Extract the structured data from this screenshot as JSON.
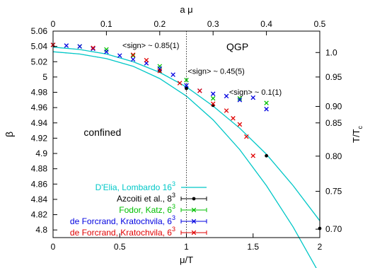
{
  "chart_data": {
    "type": "scatter",
    "xlabel": "μ/T",
    "ylabel": "β",
    "x2label": "a μ",
    "y2label_main": "T/T",
    "y2label_sub": "c",
    "xlim": [
      0,
      2
    ],
    "ylim": [
      4.79,
      5.06
    ],
    "x2lim": [
      0,
      0.5
    ],
    "y2_ticks": [
      {
        "label": "0.70",
        "beta": 4.801
      },
      {
        "label": "0.75",
        "beta": 4.8505
      },
      {
        "label": "0.80",
        "beta": 4.8965
      },
      {
        "label": "0.85",
        "beta": 4.94
      },
      {
        "label": "0.90",
        "beta": 4.9615
      },
      {
        "label": "0.95",
        "beta": 5.0
      },
      {
        "label": "1.0",
        "beta": 5.032
      }
    ],
    "x_ticks": [
      0,
      0.5,
      1,
      1.5,
      2
    ],
    "x_tick_labels": [
      "0",
      "0.5",
      "1",
      "1.5",
      "2"
    ],
    "y_ticks": [
      4.8,
      4.82,
      4.84,
      4.86,
      4.88,
      4.9,
      4.92,
      4.94,
      4.96,
      4.98,
      5,
      5.02,
      5.04,
      5.06
    ],
    "y_tick_labels": [
      "4.8",
      "4.82",
      "4.84",
      "4.86",
      "4.88",
      "4.9",
      "4.92",
      "4.94",
      "4.96",
      "4.98",
      "5",
      "5.02",
      "5.04",
      "5.06"
    ],
    "x2_ticks": [
      0,
      0.1,
      0.2,
      0.3,
      0.4,
      0.5
    ],
    "x2_tick_labels": [
      "0",
      "0.1",
      "0.2",
      "0.3",
      "0.4",
      "0.5"
    ],
    "vertical_line_x": 1.0,
    "annotations": [
      {
        "text": "QGP",
        "x": 1.3,
        "y": 5.035
      },
      {
        "text": "confined",
        "x": 0.23,
        "y": 4.923
      },
      {
        "text": "<sign> ~ 0.85(1)",
        "x": 0.52,
        "y": 5.038
      },
      {
        "text": "<sign> ~ 0.45(5)",
        "x": 1.01,
        "y": 5.004
      },
      {
        "text": "<sign> ~ 0.1(1)",
        "x": 1.32,
        "y": 4.977
      }
    ],
    "legend_position": "bottom-left",
    "series": [
      {
        "name": "D'Elia, Lombardo 16",
        "name_sup": "3",
        "style": "band",
        "color": "#00c8c8",
        "x": [
          0,
          0.2,
          0.4,
          0.6,
          0.8,
          1.0,
          1.2,
          1.4,
          1.6,
          1.8,
          2.0
        ],
        "y": [
          5.036,
          5.033,
          5.027,
          5.017,
          5.001,
          4.979,
          4.952,
          4.919,
          4.879,
          4.833,
          4.78
        ],
        "band_upper": [
          5.039,
          5.036,
          5.03,
          5.02,
          5.006,
          4.987,
          4.962,
          4.933,
          4.899,
          4.858,
          4.812
        ],
        "band_lower": [
          5.033,
          5.03,
          5.024,
          5.014,
          4.998,
          4.975,
          4.944,
          4.905,
          4.858,
          4.804,
          4.742
        ]
      },
      {
        "name": "Azcoiti et al., 8",
        "name_sup": "3",
        "color": "#000000",
        "marker": "dot",
        "points": [
          {
            "x": 0.8,
            "y": 5.008
          },
          {
            "x": 1.0,
            "y": 4.985
          },
          {
            "x": 1.2,
            "y": 4.963
          },
          {
            "x": 1.6,
            "y": 4.897
          },
          {
            "x": 2.0,
            "y": 4.802
          }
        ]
      },
      {
        "name": "Fodor, Katz, 6",
        "name_sup": "3",
        "color": "#00c000",
        "marker": "x",
        "points": [
          {
            "x": 0.0,
            "y": 5.042
          },
          {
            "x": 0.2,
            "y": 5.04
          },
          {
            "x": 0.4,
            "y": 5.036
          },
          {
            "x": 0.6,
            "y": 5.028
          },
          {
            "x": 0.8,
            "y": 5.014
          },
          {
            "x": 1.0,
            "y": 4.996
          },
          {
            "x": 1.2,
            "y": 4.972
          },
          {
            "x": 1.4,
            "y": 4.972
          },
          {
            "x": 1.6,
            "y": 4.966
          }
        ]
      },
      {
        "name": "de Forcrand, Kratochvila, 6",
        "name_sup": "3",
        "color": "#0000e0",
        "marker": "x",
        "points": [
          {
            "x": 0.0,
            "y": 5.042
          },
          {
            "x": 0.1,
            "y": 5.041
          },
          {
            "x": 0.2,
            "y": 5.04
          },
          {
            "x": 0.3,
            "y": 5.037
          },
          {
            "x": 0.4,
            "y": 5.033
          },
          {
            "x": 0.5,
            "y": 5.028
          },
          {
            "x": 0.6,
            "y": 5.023
          },
          {
            "x": 0.7,
            "y": 5.018
          },
          {
            "x": 0.8,
            "y": 5.011
          },
          {
            "x": 0.9,
            "y": 5.003
          },
          {
            "x": 1.0,
            "y": 4.989
          },
          {
            "x": 1.1,
            "y": 4.982
          },
          {
            "x": 1.2,
            "y": 4.978
          },
          {
            "x": 1.3,
            "y": 4.975
          },
          {
            "x": 1.4,
            "y": 4.97
          },
          {
            "x": 1.5,
            "y": 4.973
          },
          {
            "x": 1.6,
            "y": 4.958
          }
        ]
      },
      {
        "name": "de Forcrand, Kratochvila, 6",
        "name_sup": "3",
        "color": "#e00000",
        "marker": "x",
        "points": [
          {
            "x": 0.0,
            "y": 5.042
          },
          {
            "x": 0.3,
            "y": 5.038
          },
          {
            "x": 0.6,
            "y": 5.029
          },
          {
            "x": 0.7,
            "y": 5.022
          },
          {
            "x": 0.8,
            "y": 5.008
          },
          {
            "x": 0.95,
            "y": 4.992
          },
          {
            "x": 1.1,
            "y": 4.982
          },
          {
            "x": 1.2,
            "y": 4.965
          },
          {
            "x": 1.3,
            "y": 4.956
          },
          {
            "x": 1.35,
            "y": 4.946
          },
          {
            "x": 1.4,
            "y": 4.938
          },
          {
            "x": 1.45,
            "y": 4.922
          },
          {
            "x": 1.5,
            "y": 4.897
          }
        ]
      }
    ]
  }
}
